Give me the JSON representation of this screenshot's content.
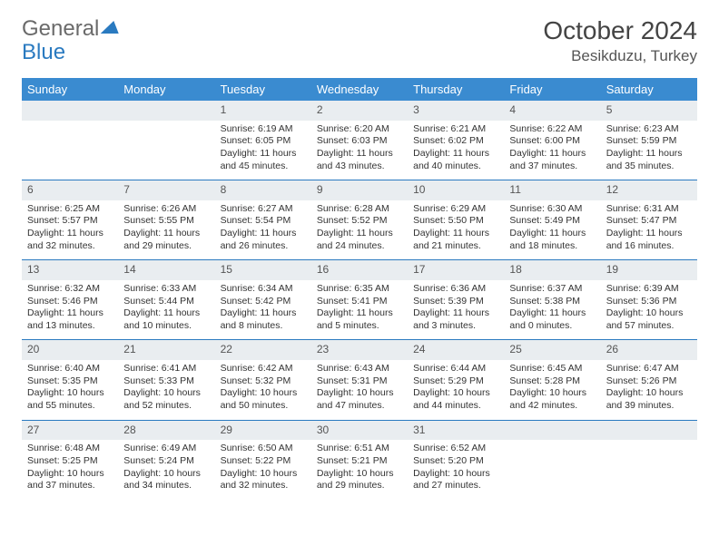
{
  "logo": {
    "word1": "General",
    "word2": "Blue"
  },
  "title": "October 2024",
  "location": "Besikduzu, Turkey",
  "columns": [
    "Sunday",
    "Monday",
    "Tuesday",
    "Wednesday",
    "Thursday",
    "Friday",
    "Saturday"
  ],
  "colors": {
    "header_bg": "#3a8bd0",
    "header_text": "#ffffff",
    "daynum_bg": "#e9edf0",
    "rule": "#2a7ac0",
    "text": "#333333",
    "logo_blue": "#2a7ac0",
    "logo_gray": "#6a6a6a",
    "page_bg": "#ffffff"
  },
  "weeks": [
    [
      {
        "n": "",
        "sr": "",
        "ss": "",
        "dl": ""
      },
      {
        "n": "",
        "sr": "",
        "ss": "",
        "dl": ""
      },
      {
        "n": "1",
        "sr": "Sunrise: 6:19 AM",
        "ss": "Sunset: 6:05 PM",
        "dl": "Daylight: 11 hours and 45 minutes."
      },
      {
        "n": "2",
        "sr": "Sunrise: 6:20 AM",
        "ss": "Sunset: 6:03 PM",
        "dl": "Daylight: 11 hours and 43 minutes."
      },
      {
        "n": "3",
        "sr": "Sunrise: 6:21 AM",
        "ss": "Sunset: 6:02 PM",
        "dl": "Daylight: 11 hours and 40 minutes."
      },
      {
        "n": "4",
        "sr": "Sunrise: 6:22 AM",
        "ss": "Sunset: 6:00 PM",
        "dl": "Daylight: 11 hours and 37 minutes."
      },
      {
        "n": "5",
        "sr": "Sunrise: 6:23 AM",
        "ss": "Sunset: 5:59 PM",
        "dl": "Daylight: 11 hours and 35 minutes."
      }
    ],
    [
      {
        "n": "6",
        "sr": "Sunrise: 6:25 AM",
        "ss": "Sunset: 5:57 PM",
        "dl": "Daylight: 11 hours and 32 minutes."
      },
      {
        "n": "7",
        "sr": "Sunrise: 6:26 AM",
        "ss": "Sunset: 5:55 PM",
        "dl": "Daylight: 11 hours and 29 minutes."
      },
      {
        "n": "8",
        "sr": "Sunrise: 6:27 AM",
        "ss": "Sunset: 5:54 PM",
        "dl": "Daylight: 11 hours and 26 minutes."
      },
      {
        "n": "9",
        "sr": "Sunrise: 6:28 AM",
        "ss": "Sunset: 5:52 PM",
        "dl": "Daylight: 11 hours and 24 minutes."
      },
      {
        "n": "10",
        "sr": "Sunrise: 6:29 AM",
        "ss": "Sunset: 5:50 PM",
        "dl": "Daylight: 11 hours and 21 minutes."
      },
      {
        "n": "11",
        "sr": "Sunrise: 6:30 AM",
        "ss": "Sunset: 5:49 PM",
        "dl": "Daylight: 11 hours and 18 minutes."
      },
      {
        "n": "12",
        "sr": "Sunrise: 6:31 AM",
        "ss": "Sunset: 5:47 PM",
        "dl": "Daylight: 11 hours and 16 minutes."
      }
    ],
    [
      {
        "n": "13",
        "sr": "Sunrise: 6:32 AM",
        "ss": "Sunset: 5:46 PM",
        "dl": "Daylight: 11 hours and 13 minutes."
      },
      {
        "n": "14",
        "sr": "Sunrise: 6:33 AM",
        "ss": "Sunset: 5:44 PM",
        "dl": "Daylight: 11 hours and 10 minutes."
      },
      {
        "n": "15",
        "sr": "Sunrise: 6:34 AM",
        "ss": "Sunset: 5:42 PM",
        "dl": "Daylight: 11 hours and 8 minutes."
      },
      {
        "n": "16",
        "sr": "Sunrise: 6:35 AM",
        "ss": "Sunset: 5:41 PM",
        "dl": "Daylight: 11 hours and 5 minutes."
      },
      {
        "n": "17",
        "sr": "Sunrise: 6:36 AM",
        "ss": "Sunset: 5:39 PM",
        "dl": "Daylight: 11 hours and 3 minutes."
      },
      {
        "n": "18",
        "sr": "Sunrise: 6:37 AM",
        "ss": "Sunset: 5:38 PM",
        "dl": "Daylight: 11 hours and 0 minutes."
      },
      {
        "n": "19",
        "sr": "Sunrise: 6:39 AM",
        "ss": "Sunset: 5:36 PM",
        "dl": "Daylight: 10 hours and 57 minutes."
      }
    ],
    [
      {
        "n": "20",
        "sr": "Sunrise: 6:40 AM",
        "ss": "Sunset: 5:35 PM",
        "dl": "Daylight: 10 hours and 55 minutes."
      },
      {
        "n": "21",
        "sr": "Sunrise: 6:41 AM",
        "ss": "Sunset: 5:33 PM",
        "dl": "Daylight: 10 hours and 52 minutes."
      },
      {
        "n": "22",
        "sr": "Sunrise: 6:42 AM",
        "ss": "Sunset: 5:32 PM",
        "dl": "Daylight: 10 hours and 50 minutes."
      },
      {
        "n": "23",
        "sr": "Sunrise: 6:43 AM",
        "ss": "Sunset: 5:31 PM",
        "dl": "Daylight: 10 hours and 47 minutes."
      },
      {
        "n": "24",
        "sr": "Sunrise: 6:44 AM",
        "ss": "Sunset: 5:29 PM",
        "dl": "Daylight: 10 hours and 44 minutes."
      },
      {
        "n": "25",
        "sr": "Sunrise: 6:45 AM",
        "ss": "Sunset: 5:28 PM",
        "dl": "Daylight: 10 hours and 42 minutes."
      },
      {
        "n": "26",
        "sr": "Sunrise: 6:47 AM",
        "ss": "Sunset: 5:26 PM",
        "dl": "Daylight: 10 hours and 39 minutes."
      }
    ],
    [
      {
        "n": "27",
        "sr": "Sunrise: 6:48 AM",
        "ss": "Sunset: 5:25 PM",
        "dl": "Daylight: 10 hours and 37 minutes."
      },
      {
        "n": "28",
        "sr": "Sunrise: 6:49 AM",
        "ss": "Sunset: 5:24 PM",
        "dl": "Daylight: 10 hours and 34 minutes."
      },
      {
        "n": "29",
        "sr": "Sunrise: 6:50 AM",
        "ss": "Sunset: 5:22 PM",
        "dl": "Daylight: 10 hours and 32 minutes."
      },
      {
        "n": "30",
        "sr": "Sunrise: 6:51 AM",
        "ss": "Sunset: 5:21 PM",
        "dl": "Daylight: 10 hours and 29 minutes."
      },
      {
        "n": "31",
        "sr": "Sunrise: 6:52 AM",
        "ss": "Sunset: 5:20 PM",
        "dl": "Daylight: 10 hours and 27 minutes."
      },
      {
        "n": "",
        "sr": "",
        "ss": "",
        "dl": ""
      },
      {
        "n": "",
        "sr": "",
        "ss": "",
        "dl": ""
      }
    ]
  ]
}
